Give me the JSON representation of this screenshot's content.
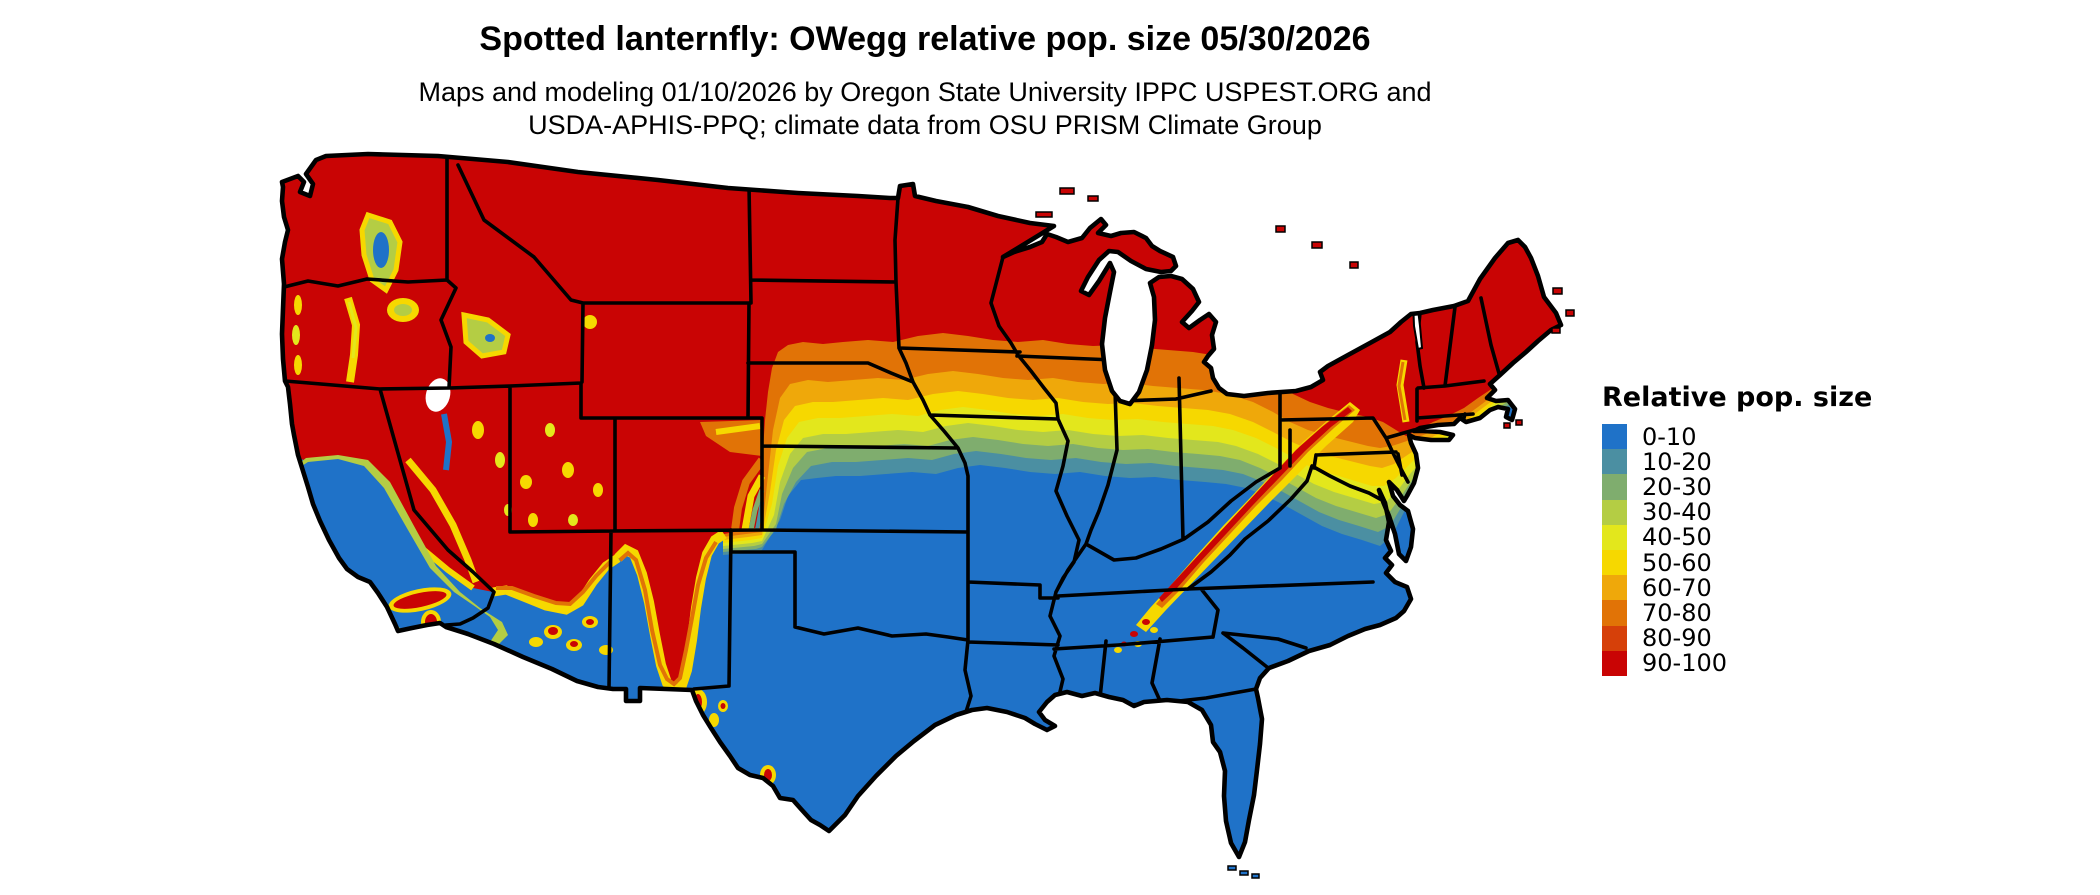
{
  "header": {
    "title": "Spotted lanternfly: OWegg relative pop. size 05/30/2026",
    "subtitle_line1": "Maps and modeling 01/10/2026 by Oregon State University IPPC USPEST.ORG and",
    "subtitle_line2": "USDA-APHIS-PPQ; climate data from OSU PRISM Climate Group"
  },
  "legend": {
    "title": "Relative pop. size",
    "entries": [
      {
        "label": "0-10",
        "color": "#1f72c8"
      },
      {
        "label": "10-20",
        "color": "#4b8fa2"
      },
      {
        "label": "20-30",
        "color": "#7fad6e"
      },
      {
        "label": "30-40",
        "color": "#b4cd44"
      },
      {
        "label": "40-50",
        "color": "#e3e71c"
      },
      {
        "label": "50-60",
        "color": "#f6d800"
      },
      {
        "label": "60-70",
        "color": "#efa80a"
      },
      {
        "label": "70-80",
        "color": "#e17306"
      },
      {
        "label": "80-90",
        "color": "#d64009"
      },
      {
        "label": "90-100",
        "color": "#c90404"
      }
    ]
  },
  "map": {
    "region": "Conterminous United States",
    "no_data_color": "#ffffff",
    "state_border_color": "#000000",
    "water_color": "#ffffff"
  }
}
